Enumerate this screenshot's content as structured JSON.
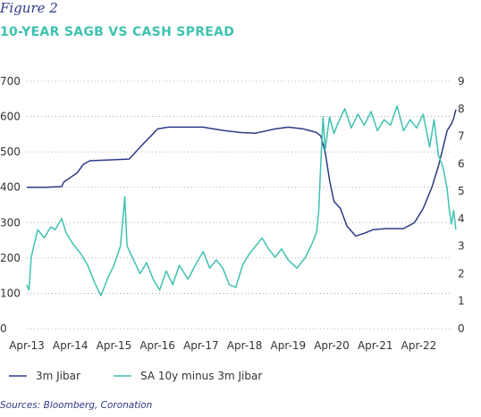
{
  "figure_label": "Figure 2",
  "title": "10-YEAR SAGB VS CASH SPREAD",
  "source": "Sources: Bloomberg, Coronation",
  "chart_data": {
    "type": "line",
    "grid": true,
    "legend_position": "bottom-left",
    "x_ticks": [
      "Apr-13",
      "Apr-14",
      "Apr-15",
      "Apr-16",
      "Apr-17",
      "Apr-18",
      "Apr-19",
      "Apr-20",
      "Apr-21",
      "Apr-22"
    ],
    "x_range": [
      2013.25,
      2023.0
    ],
    "y_left": {
      "range": [
        0,
        700
      ],
      "ticks": [
        "0",
        "100",
        "200",
        "300",
        "400",
        "500",
        "600",
        "700"
      ]
    },
    "y_right": {
      "range": [
        0,
        9
      ],
      "ticks": [
        "0",
        "1",
        "2",
        "3",
        "4",
        "5",
        "6",
        "7",
        "8",
        "9"
      ]
    },
    "series": [
      {
        "name": "3m Jibar",
        "axis": "left",
        "color": "#2e3a86",
        "points": [
          [
            2013.25,
            400
          ],
          [
            2013.7,
            400
          ],
          [
            2014.05,
            402
          ],
          [
            2014.1,
            415
          ],
          [
            2014.4,
            440
          ],
          [
            2014.55,
            465
          ],
          [
            2014.7,
            475
          ],
          [
            2015.3,
            478
          ],
          [
            2015.6,
            480
          ],
          [
            2015.9,
            520
          ],
          [
            2016.1,
            545
          ],
          [
            2016.25,
            565
          ],
          [
            2016.5,
            570
          ],
          [
            2017.3,
            570
          ],
          [
            2017.4,
            568
          ],
          [
            2017.8,
            560
          ],
          [
            2018.15,
            555
          ],
          [
            2018.5,
            553
          ],
          [
            2018.95,
            565
          ],
          [
            2019.25,
            570
          ],
          [
            2019.6,
            565
          ],
          [
            2019.9,
            555
          ],
          [
            2020.0,
            545
          ],
          [
            2020.1,
            500
          ],
          [
            2020.2,
            420
          ],
          [
            2020.3,
            360
          ],
          [
            2020.45,
            340
          ],
          [
            2020.6,
            290
          ],
          [
            2020.8,
            262
          ],
          [
            2021.0,
            270
          ],
          [
            2021.2,
            280
          ],
          [
            2021.5,
            283
          ],
          [
            2021.9,
            283
          ],
          [
            2022.15,
            300
          ],
          [
            2022.35,
            340
          ],
          [
            2022.55,
            400
          ],
          [
            2022.7,
            460
          ],
          [
            2022.8,
            510
          ],
          [
            2022.9,
            560
          ],
          [
            2023.0,
            580
          ],
          [
            2023.05,
            595
          ],
          [
            2023.1,
            620
          ]
        ]
      },
      {
        "name": "SA 10y minus 3m Jibar",
        "axis": "right",
        "color": "#3fc2b0",
        "points": [
          [
            2013.25,
            1.6
          ],
          [
            2013.3,
            1.4
          ],
          [
            2013.35,
            2.6
          ],
          [
            2013.5,
            3.6
          ],
          [
            2013.65,
            3.3
          ],
          [
            2013.8,
            3.7
          ],
          [
            2013.9,
            3.6
          ],
          [
            2014.05,
            4.0
          ],
          [
            2014.15,
            3.5
          ],
          [
            2014.3,
            3.1
          ],
          [
            2014.5,
            2.7
          ],
          [
            2014.65,
            2.3
          ],
          [
            2014.8,
            1.7
          ],
          [
            2014.95,
            1.2
          ],
          [
            2015.1,
            1.8
          ],
          [
            2015.25,
            2.3
          ],
          [
            2015.4,
            3.0
          ],
          [
            2015.5,
            4.8
          ],
          [
            2015.55,
            3.0
          ],
          [
            2015.7,
            2.5
          ],
          [
            2015.85,
            2.0
          ],
          [
            2016.0,
            2.4
          ],
          [
            2016.15,
            1.8
          ],
          [
            2016.3,
            1.4
          ],
          [
            2016.45,
            2.1
          ],
          [
            2016.6,
            1.6
          ],
          [
            2016.75,
            2.3
          ],
          [
            2016.95,
            1.8
          ],
          [
            2017.15,
            2.4
          ],
          [
            2017.3,
            2.8
          ],
          [
            2017.45,
            2.2
          ],
          [
            2017.6,
            2.5
          ],
          [
            2017.75,
            2.2
          ],
          [
            2017.9,
            1.6
          ],
          [
            2018.05,
            1.5
          ],
          [
            2018.2,
            2.3
          ],
          [
            2018.35,
            2.7
          ],
          [
            2018.5,
            3.0
          ],
          [
            2018.65,
            3.3
          ],
          [
            2018.8,
            2.9
          ],
          [
            2018.95,
            2.6
          ],
          [
            2019.1,
            2.9
          ],
          [
            2019.25,
            2.5
          ],
          [
            2019.45,
            2.2
          ],
          [
            2019.65,
            2.6
          ],
          [
            2019.8,
            3.1
          ],
          [
            2019.9,
            3.5
          ],
          [
            2019.95,
            4.2
          ],
          [
            2020.0,
            6.0
          ],
          [
            2020.05,
            7.7
          ],
          [
            2020.1,
            6.5
          ],
          [
            2020.2,
            7.7
          ],
          [
            2020.3,
            7.1
          ],
          [
            2020.4,
            7.5
          ],
          [
            2020.55,
            8.0
          ],
          [
            2020.7,
            7.3
          ],
          [
            2020.85,
            7.8
          ],
          [
            2021.0,
            7.4
          ],
          [
            2021.15,
            7.9
          ],
          [
            2021.3,
            7.2
          ],
          [
            2021.45,
            7.6
          ],
          [
            2021.6,
            7.4
          ],
          [
            2021.75,
            8.1
          ],
          [
            2021.9,
            7.2
          ],
          [
            2022.05,
            7.6
          ],
          [
            2022.2,
            7.3
          ],
          [
            2022.35,
            7.8
          ],
          [
            2022.5,
            6.6
          ],
          [
            2022.6,
            7.6
          ],
          [
            2022.7,
            6.3
          ],
          [
            2022.8,
            5.9
          ],
          [
            2022.9,
            5.1
          ],
          [
            2022.95,
            4.3
          ],
          [
            2023.0,
            3.8
          ],
          [
            2023.05,
            4.3
          ],
          [
            2023.1,
            3.6
          ]
        ]
      }
    ]
  }
}
